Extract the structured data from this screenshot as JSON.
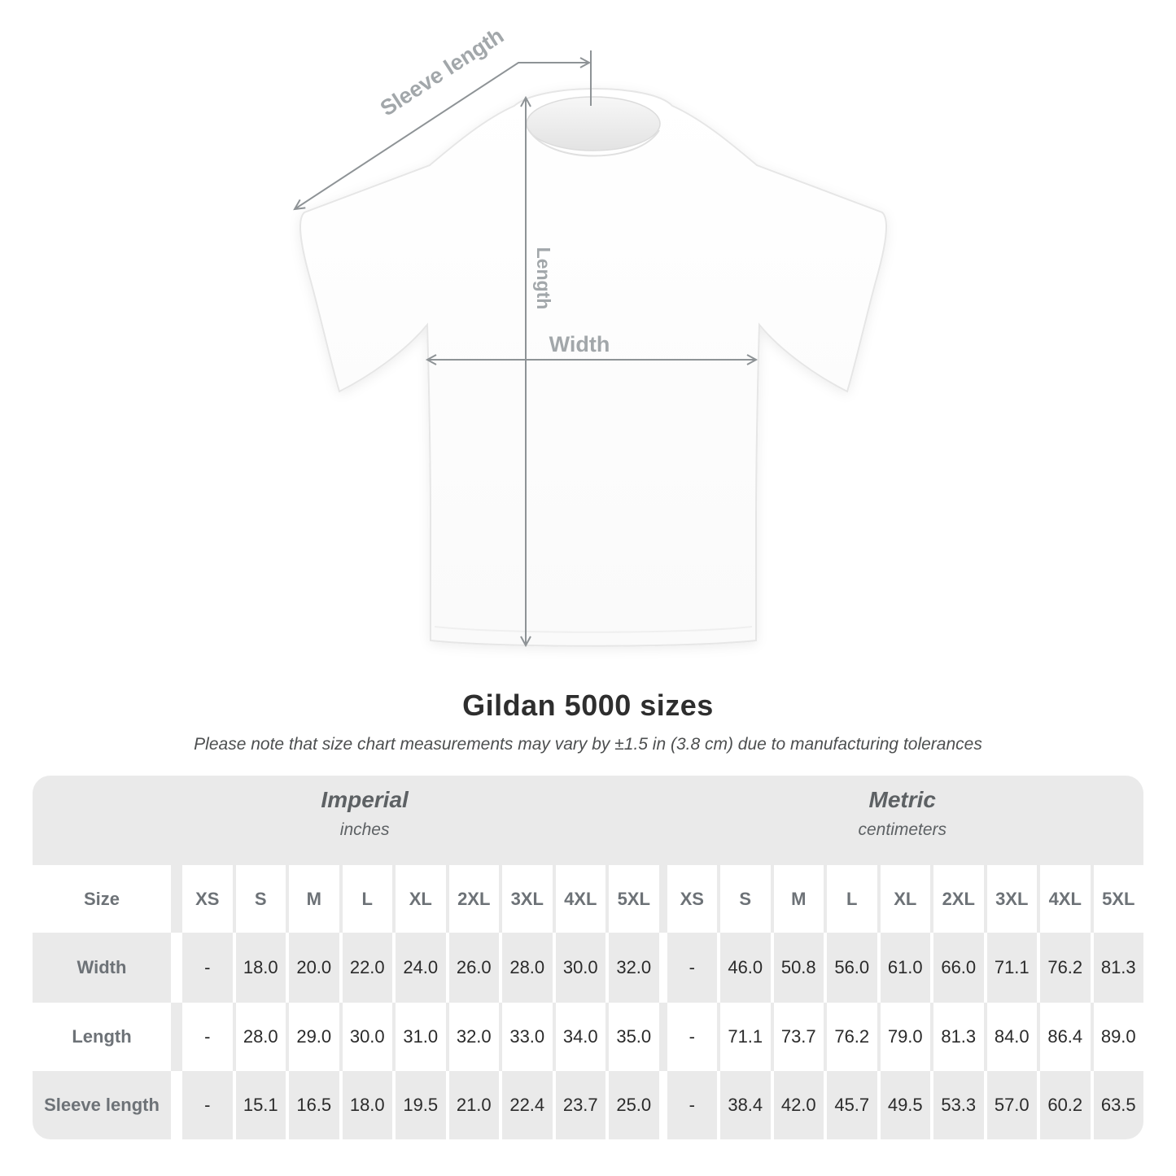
{
  "diagram": {
    "labels": {
      "sleeve_length": "Sleeve length",
      "length": "Length",
      "width": "Width"
    }
  },
  "title": "Gildan 5000 sizes",
  "subtitle": "Please note that size chart measurements may vary by ±1.5 in (3.8 cm) due to manufacturing tolerances",
  "table": {
    "size_header": "Size",
    "groups": [
      {
        "label": "Imperial",
        "sublabel": "inches"
      },
      {
        "label": "Metric",
        "sublabel": "centimeters"
      }
    ],
    "sizes": [
      "XS",
      "S",
      "M",
      "L",
      "XL",
      "2XL",
      "3XL",
      "4XL",
      "5XL"
    ],
    "rows": [
      {
        "label": "Width",
        "imperial": [
          "-",
          "18.0",
          "20.0",
          "22.0",
          "24.0",
          "26.0",
          "28.0",
          "30.0",
          "32.0"
        ],
        "metric": [
          "-",
          "46.0",
          "50.8",
          "56.0",
          "61.0",
          "66.0",
          "71.1",
          "76.2",
          "81.3"
        ]
      },
      {
        "label": "Length",
        "imperial": [
          "-",
          "28.0",
          "29.0",
          "30.0",
          "31.0",
          "32.0",
          "33.0",
          "34.0",
          "35.0"
        ],
        "metric": [
          "-",
          "71.1",
          "73.7",
          "76.2",
          "79.0",
          "81.3",
          "84.0",
          "86.4",
          "89.0"
        ]
      },
      {
        "label": "Sleeve length",
        "imperial": [
          "-",
          "15.1",
          "16.5",
          "18.0",
          "19.5",
          "21.0",
          "22.4",
          "23.7",
          "25.0"
        ],
        "metric": [
          "-",
          "38.4",
          "42.0",
          "45.7",
          "49.5",
          "53.3",
          "57.0",
          "60.2",
          "63.5"
        ]
      }
    ]
  },
  "chart_data": {
    "type": "table",
    "title": "Gildan 5000 sizes",
    "note": "Please note that size chart measurements may vary by ±1.5 in (3.8 cm) due to manufacturing tolerances",
    "unit_groups": [
      {
        "name": "Imperial",
        "unit": "inches"
      },
      {
        "name": "Metric",
        "unit": "centimeters"
      }
    ],
    "columns": [
      "Size",
      "XS",
      "S",
      "M",
      "L",
      "XL",
      "2XL",
      "3XL",
      "4XL",
      "5XL"
    ],
    "imperial_rows": [
      [
        "Width",
        null,
        18.0,
        20.0,
        22.0,
        24.0,
        26.0,
        28.0,
        30.0,
        32.0
      ],
      [
        "Length",
        null,
        28.0,
        29.0,
        30.0,
        31.0,
        32.0,
        33.0,
        34.0,
        35.0
      ],
      [
        "Sleeve length",
        null,
        15.1,
        16.5,
        18.0,
        19.5,
        21.0,
        22.4,
        23.7,
        25.0
      ]
    ],
    "metric_rows": [
      [
        "Width",
        null,
        46.0,
        50.8,
        56.0,
        61.0,
        66.0,
        71.1,
        76.2,
        81.3
      ],
      [
        "Length",
        null,
        71.1,
        73.7,
        76.2,
        79.0,
        81.3,
        84.0,
        86.4,
        89.0
      ],
      [
        "Sleeve length",
        null,
        38.4,
        42.0,
        45.7,
        49.5,
        53.3,
        57.0,
        60.2,
        63.5
      ]
    ]
  },
  "colors": {
    "band_gray": "#eaeaea",
    "header_text_gray": "#6d7277",
    "data_text": "#2b2b2b",
    "diagram_label_gray": "#a2a7aa",
    "arrow_gray": "#8e9396",
    "title_color": "#2e2e2e"
  }
}
